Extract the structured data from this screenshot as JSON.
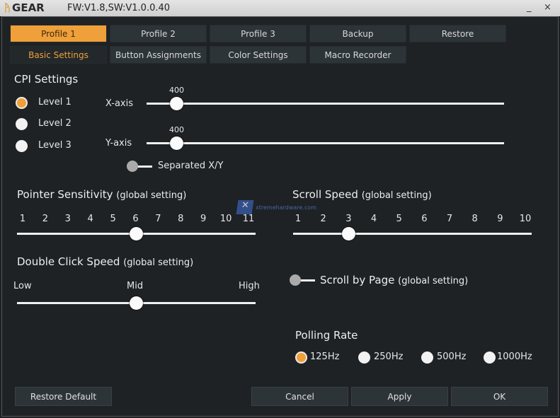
{
  "titlebar": {
    "logo": "GEAR",
    "version": "FW:V1.8,SW:V1.0.0.40",
    "minimize": "_",
    "close": "×"
  },
  "profile_tabs": [
    {
      "label": "Profile 1",
      "active": true
    },
    {
      "label": "Profile 2"
    },
    {
      "label": "Profile 3"
    },
    {
      "label": "Backup"
    },
    {
      "label": "Restore"
    }
  ],
  "sub_tabs": [
    {
      "label": "Basic Settings",
      "active": true
    },
    {
      "label": "Button Assignments"
    },
    {
      "label": "Color Settings"
    },
    {
      "label": "Macro Recorder"
    }
  ],
  "cpi": {
    "title": "CPI Settings",
    "levels": [
      "Level 1",
      "Level 2",
      "Level 3"
    ],
    "selected_level": "Level 1",
    "x_label": "X-axis",
    "x_value": "400",
    "y_label": "Y-axis",
    "y_value": "400",
    "separated_label": "Separated X/Y",
    "separated_on": false
  },
  "pointer": {
    "title": "Pointer Sensitivity",
    "suffix": "(global setting)",
    "ticks": [
      "1",
      "2",
      "3",
      "4",
      "5",
      "6",
      "7",
      "8",
      "9",
      "10",
      "11"
    ],
    "value": 6
  },
  "scroll": {
    "title": "Scroll Speed",
    "suffix": "(global setting)",
    "ticks": [
      "1",
      "2",
      "3",
      "4",
      "5",
      "6",
      "7",
      "8",
      "9",
      "10"
    ],
    "value": 3
  },
  "dblclick": {
    "title": "Double Click Speed",
    "suffix": "(global setting)",
    "low": "Low",
    "mid": "Mid",
    "high": "High",
    "value": "Mid"
  },
  "scroll_by_page": {
    "label": "Scroll by Page",
    "suffix": "(global setting)",
    "on": false
  },
  "polling": {
    "title": "Polling Rate",
    "options": [
      "125Hz",
      "250Hz",
      "500Hz",
      "1000Hz"
    ],
    "selected": "125Hz"
  },
  "buttons": {
    "restore_default": "Restore Default",
    "cancel": "Cancel",
    "apply": "Apply",
    "ok": "OK"
  },
  "watermark": "xtremehardware.com",
  "colors": {
    "accent": "#f0a03a",
    "background": "#1e2225",
    "button": "#2d3438"
  }
}
